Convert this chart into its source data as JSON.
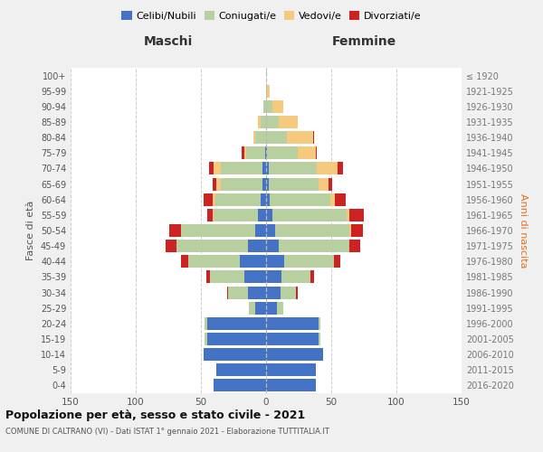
{
  "age_groups": [
    "0-4",
    "5-9",
    "10-14",
    "15-19",
    "20-24",
    "25-29",
    "30-34",
    "35-39",
    "40-44",
    "45-49",
    "50-54",
    "55-59",
    "60-64",
    "65-69",
    "70-74",
    "75-79",
    "80-84",
    "85-89",
    "90-94",
    "95-99",
    "100+"
  ],
  "birth_years": [
    "2016-2020",
    "2011-2015",
    "2006-2010",
    "2001-2005",
    "1996-2000",
    "1991-1995",
    "1986-1990",
    "1981-1985",
    "1976-1980",
    "1971-1975",
    "1966-1970",
    "1961-1965",
    "1956-1960",
    "1951-1955",
    "1946-1950",
    "1941-1945",
    "1936-1940",
    "1931-1935",
    "1926-1930",
    "1921-1925",
    "≤ 1920"
  ],
  "colors": {
    "celibe": "#4472c4",
    "coniugato": "#b8cfa0",
    "vedovo": "#f5c97e",
    "divorziato": "#cc2222"
  },
  "maschi": {
    "celibe": [
      40,
      38,
      48,
      45,
      45,
      8,
      14,
      17,
      20,
      14,
      8,
      6,
      4,
      3,
      3,
      1,
      0,
      0,
      0,
      0,
      0
    ],
    "coniugato": [
      0,
      0,
      0,
      2,
      2,
      5,
      15,
      26,
      40,
      55,
      57,
      34,
      35,
      32,
      32,
      14,
      8,
      4,
      2,
      0,
      0
    ],
    "vedovo": [
      0,
      0,
      0,
      0,
      0,
      0,
      0,
      0,
      0,
      0,
      0,
      1,
      2,
      3,
      5,
      2,
      2,
      2,
      0,
      0,
      0
    ],
    "divorziato": [
      0,
      0,
      0,
      0,
      0,
      0,
      1,
      3,
      5,
      8,
      9,
      4,
      7,
      3,
      4,
      2,
      0,
      0,
      0,
      0,
      0
    ]
  },
  "femmine": {
    "nubile": [
      38,
      38,
      44,
      40,
      40,
      8,
      11,
      12,
      14,
      10,
      7,
      5,
      3,
      2,
      2,
      1,
      0,
      0,
      0,
      0,
      0
    ],
    "coniugata": [
      0,
      0,
      0,
      2,
      2,
      5,
      12,
      22,
      38,
      54,
      57,
      57,
      46,
      38,
      37,
      23,
      16,
      10,
      5,
      1,
      0
    ],
    "vedova": [
      0,
      0,
      0,
      0,
      0,
      0,
      0,
      0,
      0,
      0,
      1,
      2,
      4,
      8,
      16,
      14,
      20,
      14,
      8,
      2,
      0
    ],
    "divorziata": [
      0,
      0,
      0,
      0,
      0,
      0,
      1,
      3,
      5,
      8,
      9,
      11,
      8,
      3,
      4,
      1,
      1,
      0,
      0,
      0,
      0
    ]
  },
  "title": "Popolazione per età, sesso e stato civile - 2021",
  "subtitle": "COMUNE DI CALTRANO (VI) - Dati ISTAT 1° gennaio 2021 - Elaborazione TUTTITALIA.IT",
  "xlabel_maschi": "Maschi",
  "xlabel_femmine": "Femmine",
  "ylabel_left": "Fasce di età",
  "ylabel_right": "Anni di nascita",
  "xlim": 150,
  "legend_labels": [
    "Celibi/Nubili",
    "Coniugati/e",
    "Vedovi/e",
    "Divorziati/e"
  ],
  "bg_color": "#f0f0f0",
  "plot_bg_color": "#ffffff"
}
